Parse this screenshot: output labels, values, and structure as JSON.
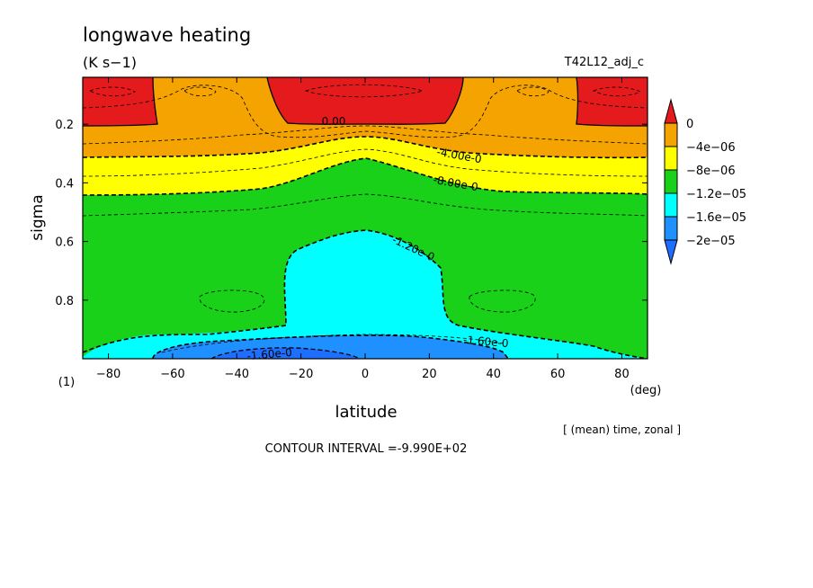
{
  "chart_data": {
    "type": "heatmap",
    "title": "longwave heating",
    "units": "(K s−1)",
    "run_label": "T42L12_adj_c",
    "xlabel": "latitude",
    "x_unit": "(deg)",
    "ylabel": "sigma",
    "panel_index": "(1)",
    "subtitle": "[ (mean) time, zonal ]",
    "footer": "CONTOUR INTERVAL =-9.990E+02",
    "xlim": [
      -88,
      88
    ],
    "ylim": [
      1.0,
      0.04
    ],
    "x_ticks": [
      -80,
      -60,
      -40,
      -20,
      0,
      20,
      40,
      60,
      80
    ],
    "x_tick_labels": [
      "−80",
      "−60",
      "−40",
      "−20",
      "0",
      "20",
      "40",
      "60",
      "80"
    ],
    "y_ticks": [
      0.2,
      0.4,
      0.6,
      0.8
    ],
    "y_tick_labels": [
      "0.2",
      "0.4",
      "0.6",
      "0.8"
    ],
    "colorbar": {
      "levels": [
        "0",
        "−4e−06",
        "−8e−06",
        "−1.2e−05",
        "−1.6e−05",
        "−2e−05"
      ],
      "colors": [
        "#e41a1c",
        "#f5a300",
        "#ffff00",
        "#19d119",
        "#00ffff",
        "#1e90ff",
        "#1e6fff"
      ]
    },
    "contour_labels": [
      "0.00",
      "-4.00e-0",
      "-8.00e-0",
      "-1.20e-0",
      "-1.60e-0",
      "-1.60e-0"
    ],
    "regions": [
      {
        "name": "positive heating above 0",
        "color": "#e41a1c",
        "approx_lat": [
          [
            -88,
            -65
          ],
          [
            -30,
            30
          ],
          [
            65,
            88
          ]
        ],
        "approx_sigma": [
          0.04,
          0.14
        ]
      },
      {
        "name": "0 to -4e-06",
        "color": "#f5a300",
        "approx_sigma": [
          0.04,
          0.3
        ]
      },
      {
        "name": "-4e-06 to -8e-06",
        "color": "#ffff00",
        "approx_sigma": [
          0.25,
          0.37
        ]
      },
      {
        "name": "-8e-06 to -1.2e-05",
        "color": "#19d119",
        "approx_sigma": [
          0.3,
          1.0
        ]
      },
      {
        "name": "-1.2e-05 to -1.6e-05",
        "color": "#00ffff",
        "approx_lat": [
          -70,
          30
        ],
        "approx_sigma": [
          0.56,
          1.0
        ]
      },
      {
        "name": "-1.6e-05 to -2e-05",
        "color": "#1e90ff",
        "approx_lat": [
          -50,
          40
        ],
        "approx_sigma": [
          0.93,
          1.0
        ]
      }
    ]
  }
}
